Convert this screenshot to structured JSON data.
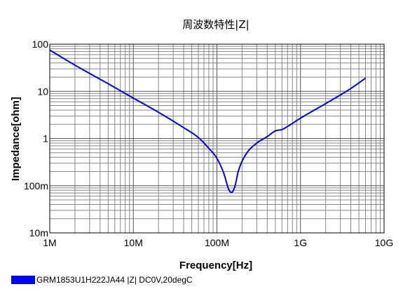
{
  "chart_data": {
    "type": "line",
    "title": "周波数特性|Z|",
    "xlabel": "Frequency[Hz]",
    "ylabel": "Impedance[ohm]",
    "x_scale": "log",
    "y_scale": "log",
    "xlim": [
      1000000,
      10000000000
    ],
    "ylim": [
      0.01,
      100
    ],
    "x_ticks": [
      {
        "value": 1000000,
        "label": "1M"
      },
      {
        "value": 10000000,
        "label": "10M"
      },
      {
        "value": 100000000,
        "label": "100M"
      },
      {
        "value": 1000000000,
        "label": "1G"
      },
      {
        "value": 10000000000,
        "label": "10G"
      }
    ],
    "y_ticks": [
      {
        "value": 100,
        "label": "100"
      },
      {
        "value": 10,
        "label": "10"
      },
      {
        "value": 1,
        "label": "1"
      },
      {
        "value": 0.1,
        "label": "100m"
      },
      {
        "value": 0.01,
        "label": "10m"
      }
    ],
    "grid": true,
    "legend_position": "bottom-left",
    "series": [
      {
        "name": "GRM1853U1H222JA44 |Z| DC0V,20degC",
        "color": "#0000ff",
        "points": [
          [
            1000000,
            75
          ],
          [
            2000000,
            36
          ],
          [
            5000000,
            14.5
          ],
          [
            10000000,
            7.2
          ],
          [
            20000000,
            3.6
          ],
          [
            40000000,
            1.7
          ],
          [
            60000000,
            1.05
          ],
          [
            80000000,
            0.62
          ],
          [
            100000000,
            0.38
          ],
          [
            120000000,
            0.19
          ],
          [
            140000000,
            0.08
          ],
          [
            150000000,
            0.072
          ],
          [
            165000000,
            0.1
          ],
          [
            180000000,
            0.2
          ],
          [
            220000000,
            0.45
          ],
          [
            300000000,
            0.8
          ],
          [
            400000000,
            1.1
          ],
          [
            500000000,
            1.45
          ],
          [
            600000000,
            1.55
          ],
          [
            700000000,
            1.8
          ],
          [
            1000000000,
            2.7
          ],
          [
            2000000000,
            5.5
          ],
          [
            4000000000,
            11.5
          ],
          [
            6000000000,
            19
          ]
        ]
      }
    ]
  }
}
